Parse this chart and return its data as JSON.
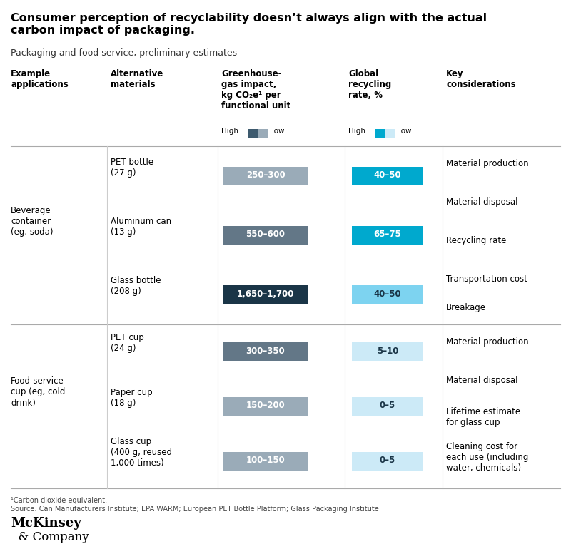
{
  "title_line1": "Consumer perception of recyclability doesn’t always align with the actual",
  "title_line2": "carbon impact of packaging.",
  "subtitle": "Packaging and food service, preliminary estimates",
  "rows": [
    {
      "group": "Beverage\ncontainer\n(eg, soda)",
      "material": "PET bottle\n(27 g)",
      "ghg_value": "250–300",
      "ghg_color": "#9aabb8",
      "recycling_value": "40–50",
      "recycling_color": "#00a9ce",
      "recycling_text_color": "#ffffff"
    },
    {
      "group": "",
      "material": "Aluminum can\n(13 g)",
      "ghg_value": "550–600",
      "ghg_color": "#637787",
      "recycling_value": "65–75",
      "recycling_color": "#00a9ce",
      "recycling_text_color": "#ffffff"
    },
    {
      "group": "",
      "material": "Glass bottle\n(208 g)",
      "ghg_value": "1,650–1,700",
      "ghg_color": "#1a3547",
      "recycling_value": "40–50",
      "recycling_color": "#7dd3f0",
      "recycling_text_color": "#1a3547"
    },
    {
      "group": "Food-service\ncup (eg, cold\ndrink)",
      "material": "PET cup\n(24 g)",
      "ghg_value": "300–350",
      "ghg_color": "#637787",
      "recycling_value": "5–10",
      "recycling_color": "#cceaf7",
      "recycling_text_color": "#1a3547"
    },
    {
      "group": "",
      "material": "Paper cup\n(18 g)",
      "ghg_value": "150–200",
      "ghg_color": "#9aabb8",
      "recycling_value": "0–5",
      "recycling_color": "#cceaf7",
      "recycling_text_color": "#1a3547"
    },
    {
      "group": "",
      "material": "Glass cup\n(400 g, reused\n1,000 times)",
      "ghg_value": "100–150",
      "ghg_color": "#9aabb8",
      "recycling_value": "0–5",
      "recycling_color": "#cceaf7",
      "recycling_text_color": "#1a3547"
    }
  ],
  "bev_considerations": [
    "Material production",
    "Material disposal",
    "Recycling rate",
    "Transportation cost",
    "Breakage"
  ],
  "cup_considerations": [
    "Material production",
    "Material disposal",
    "Lifetime estimate\nfor glass cup",
    "Cleaning cost for\neach use (including\nwater, chemicals)"
  ],
  "footnote_line1": "¹Carbon dioxide equivalent.",
  "footnote_line2": "Source: Can Manufacturers Institute; EPA WARM; European PET Bottle Platform; Glass Packaging Institute",
  "logo_line1": "McKinsey",
  "logo_line2": "  & Company",
  "bg_color": "#ffffff",
  "line_color": "#aaaaaa",
  "ghg_legend_colors": [
    "#3d5a6e",
    "#9aabb8"
  ],
  "recycling_legend_colors": [
    "#00a9ce",
    "#cceaf7"
  ]
}
